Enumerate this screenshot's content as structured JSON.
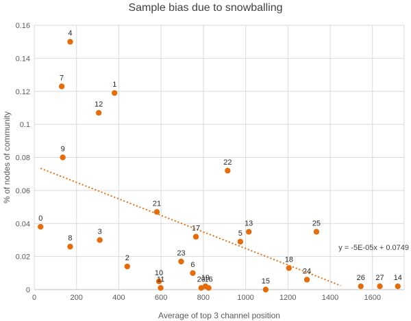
{
  "chart_data": {
    "type": "scatter",
    "title": "Sample bias due to snowballing",
    "xlabel": "Average of top 3 channel position",
    "ylabel": "% of nodes of community",
    "xlim": [
      0,
      1750
    ],
    "ylim": [
      0,
      0.16
    ],
    "xticks": [
      0,
      200,
      400,
      600,
      800,
      1000,
      1200,
      1400,
      1600
    ],
    "yticks": [
      0,
      0.02,
      0.04,
      0.06,
      0.08,
      0.1,
      0.12,
      0.14,
      0.16
    ],
    "xtick_labels": [
      "0",
      "200",
      "400",
      "600",
      "800",
      "1000",
      "1200",
      "1400",
      "1600"
    ],
    "ytick_labels": [
      "0",
      "0.02",
      "0.04",
      "0.06",
      "0.08",
      "0.1",
      "0.12",
      "0.14",
      "0.16"
    ],
    "grid": "vertical and horizontal",
    "point_color": "#e46c0a",
    "points": [
      {
        "label": "0",
        "x": 30,
        "y": 0.038
      },
      {
        "label": "1",
        "x": 380,
        "y": 0.119
      },
      {
        "label": "2",
        "x": 440,
        "y": 0.014
      },
      {
        "label": "3",
        "x": 310,
        "y": 0.03
      },
      {
        "label": "4",
        "x": 170,
        "y": 0.15
      },
      {
        "label": "5",
        "x": 975,
        "y": 0.029
      },
      {
        "label": "6",
        "x": 750,
        "y": 0.01
      },
      {
        "label": "7",
        "x": 130,
        "y": 0.123
      },
      {
        "label": "8",
        "x": 170,
        "y": 0.026
      },
      {
        "label": "9",
        "x": 135,
        "y": 0.08
      },
      {
        "label": "10",
        "x": 590,
        "y": 0.005
      },
      {
        "label": "11",
        "x": 598,
        "y": 0.001
      },
      {
        "label": "12",
        "x": 305,
        "y": 0.107
      },
      {
        "label": "13",
        "x": 1015,
        "y": 0.035
      },
      {
        "label": "14",
        "x": 1720,
        "y": 0.002
      },
      {
        "label": "15",
        "x": 1095,
        "y": 0.0
      },
      {
        "label": "16",
        "x": 825,
        "y": 0.001
      },
      {
        "label": "17",
        "x": 765,
        "y": 0.032
      },
      {
        "label": "18",
        "x": 1205,
        "y": 0.013
      },
      {
        "label": "19",
        "x": 810,
        "y": 0.002
      },
      {
        "label": "20",
        "x": 790,
        "y": 0.001
      },
      {
        "label": "21",
        "x": 580,
        "y": 0.047
      },
      {
        "label": "22",
        "x": 915,
        "y": 0.072
      },
      {
        "label": "23",
        "x": 695,
        "y": 0.017
      },
      {
        "label": "24",
        "x": 1290,
        "y": 0.006
      },
      {
        "label": "25",
        "x": 1335,
        "y": 0.035
      },
      {
        "label": "26",
        "x": 1545,
        "y": 0.002
      },
      {
        "label": "27",
        "x": 1635,
        "y": 0.002
      }
    ],
    "trendline": {
      "type": "linear",
      "slope": -5e-05,
      "intercept": 0.0749,
      "x_range": [
        30,
        1450
      ],
      "equation": "y = -5E-05x + 0.0749",
      "style": "dotted"
    }
  }
}
